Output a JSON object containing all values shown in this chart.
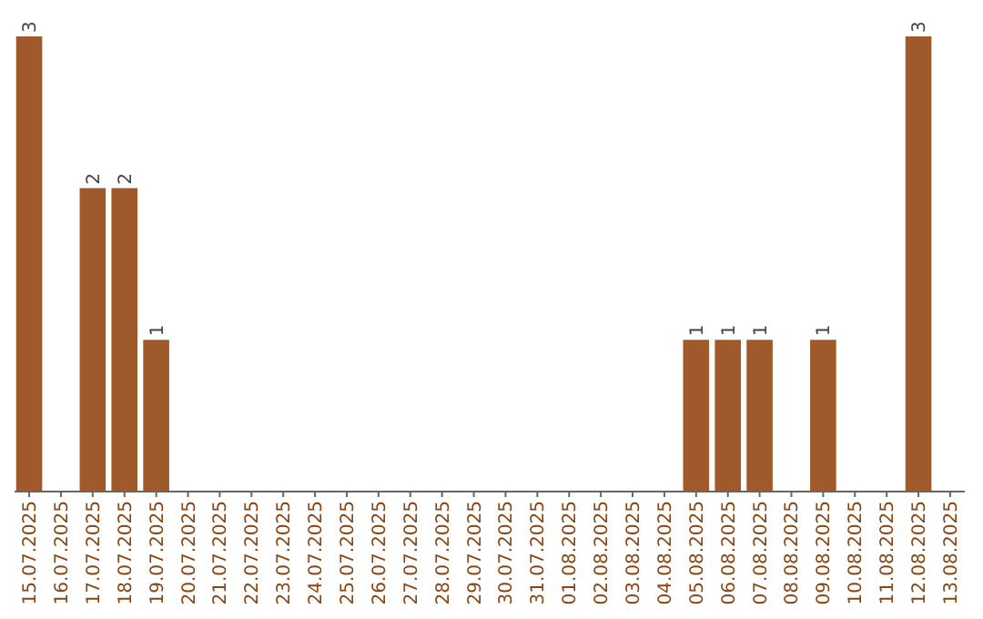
{
  "chart_data": {
    "type": "bar",
    "categories": [
      "15.07.2025",
      "16.07.2025",
      "17.07.2025",
      "18.07.2025",
      "19.07.2025",
      "20.07.2025",
      "21.07.2025",
      "22.07.2025",
      "23.07.2025",
      "24.07.2025",
      "25.07.2025",
      "26.07.2025",
      "27.07.2025",
      "28.07.2025",
      "29.07.2025",
      "30.07.2025",
      "31.07.2025",
      "01.08.2025",
      "02.08.2025",
      "03.08.2025",
      "04.08.2025",
      "05.08.2025",
      "06.08.2025",
      "07.08.2025",
      "08.08.2025",
      "09.08.2025",
      "10.08.2025",
      "11.08.2025",
      "12.08.2025",
      "13.08.2025"
    ],
    "values": [
      3,
      0,
      2,
      2,
      1,
      0,
      0,
      0,
      0,
      0,
      0,
      0,
      0,
      0,
      0,
      0,
      0,
      0,
      0,
      0,
      0,
      1,
      1,
      1,
      0,
      1,
      0,
      0,
      3,
      0
    ],
    "value_labels": [
      "3",
      null,
      "2",
      "2",
      "1",
      null,
      null,
      null,
      null,
      null,
      null,
      null,
      null,
      null,
      null,
      null,
      null,
      null,
      null,
      null,
      null,
      "1",
      "1",
      "1",
      null,
      "1",
      null,
      null,
      "3",
      null
    ],
    "color": "#a0592a"
  }
}
